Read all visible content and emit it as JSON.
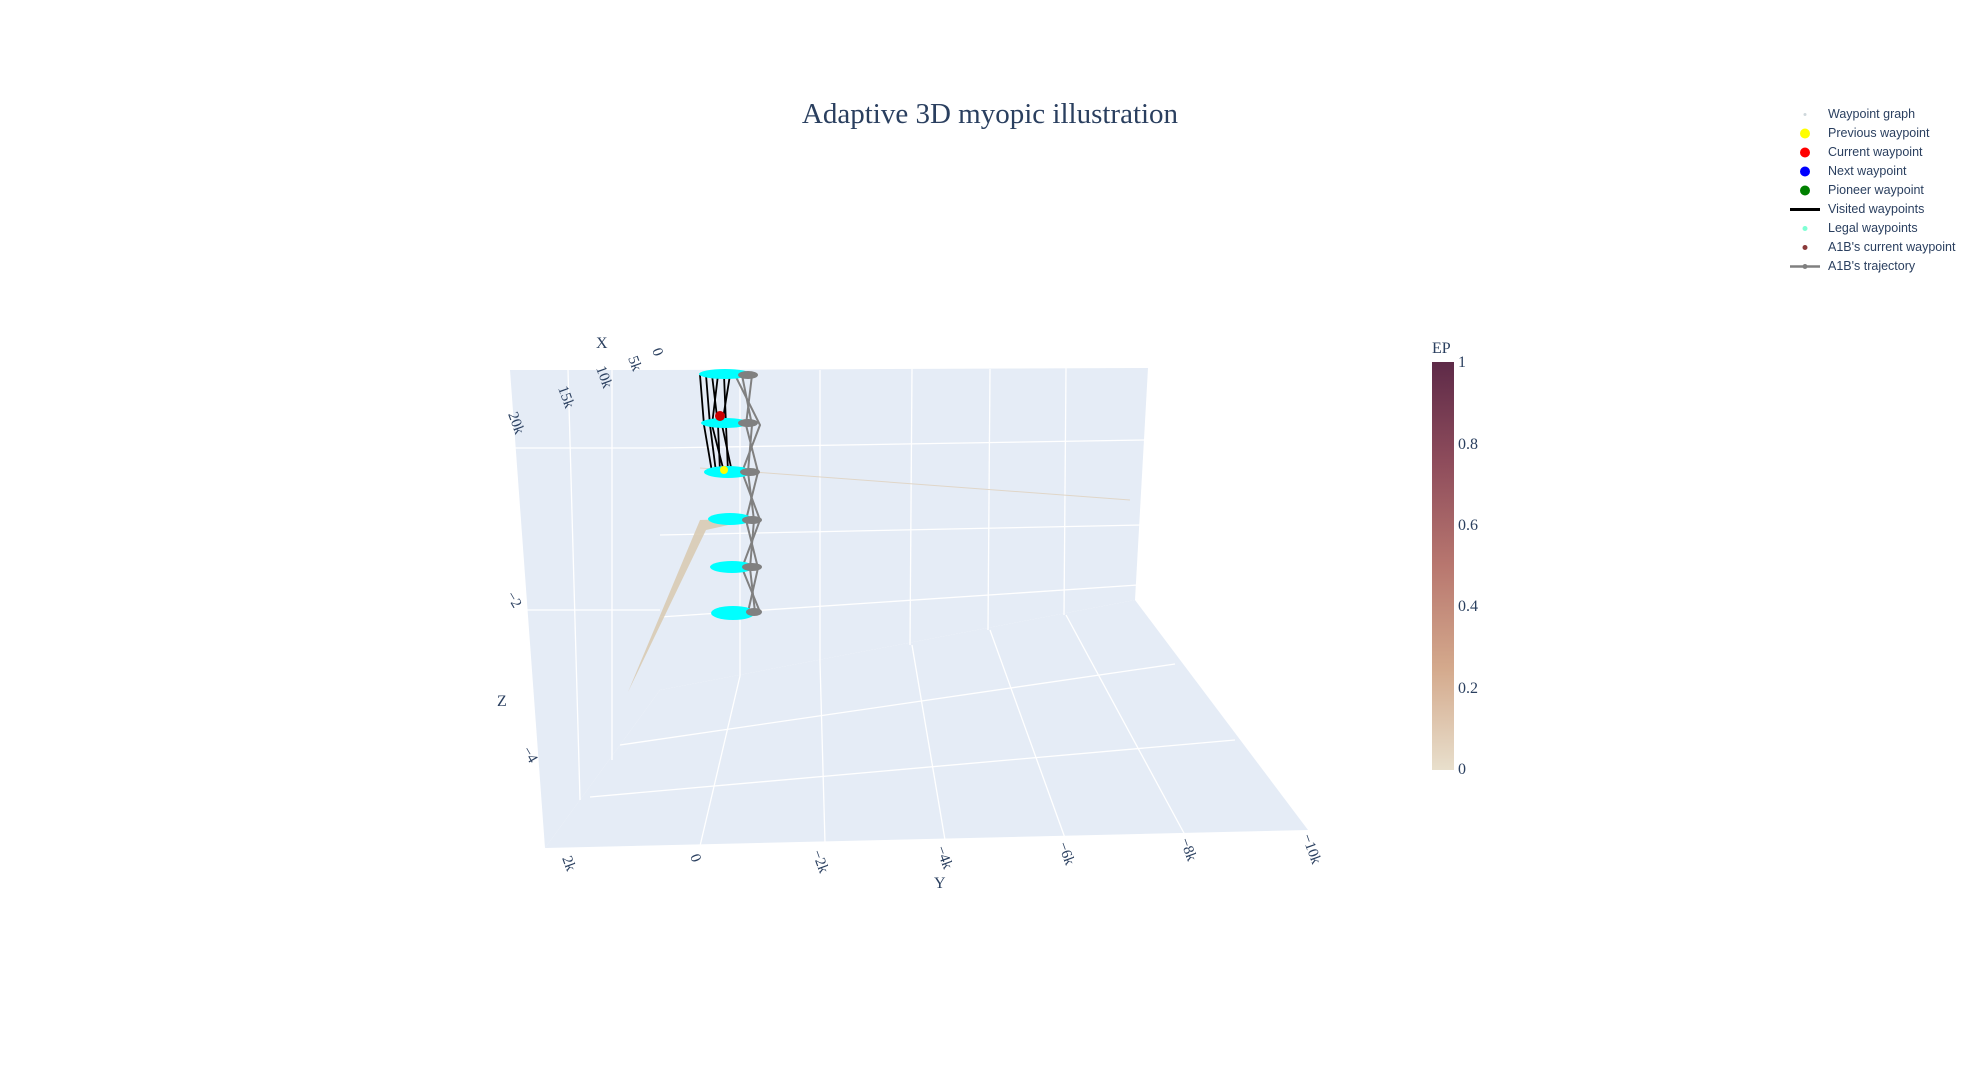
{
  "title": "Adaptive 3D myopic illustration",
  "legend": [
    {
      "name": "Waypoint graph",
      "symbol": "dot-faint",
      "color": "#cfd8dc"
    },
    {
      "name": "Previous waypoint",
      "symbol": "dot",
      "color": "#ffff00"
    },
    {
      "name": "Current waypoint",
      "symbol": "dot",
      "color": "#ff0000"
    },
    {
      "name": "Next waypoint",
      "symbol": "dot",
      "color": "#0000ff"
    },
    {
      "name": "Pioneer waypoint",
      "symbol": "dot",
      "color": "#008000"
    },
    {
      "name": "Visited waypoints",
      "symbol": "line",
      "color": "#000000"
    },
    {
      "name": "Legal waypoints",
      "symbol": "dot-small",
      "color": "#7fffd4"
    },
    {
      "name": "A1B's current waypoint",
      "symbol": "dot-small",
      "color": "#8b3a3a"
    },
    {
      "name": "A1B's trajectory",
      "symbol": "line-marker",
      "color": "#808080"
    }
  ],
  "chart_data": {
    "type": "scatter3d",
    "title": "Adaptive 3D myopic illustration",
    "axes": {
      "x": {
        "label": "X",
        "ticks": [
          "0",
          "5k",
          "10k",
          "15k",
          "20k"
        ]
      },
      "y": {
        "label": "Y",
        "ticks": [
          "2k",
          "0",
          "−2k",
          "−4k",
          "−6k",
          "−8k",
          "−10k"
        ]
      },
      "z": {
        "label": "Z",
        "ticks": [
          "−2",
          "−4"
        ]
      }
    },
    "colorbar": {
      "title": "EP",
      "ticks": [
        "1",
        "0.8",
        "0.6",
        "0.4",
        "0.2",
        "0"
      ],
      "colors": [
        "#e8dfcc",
        "#d4a98c",
        "#b8776f",
        "#8f4d5c",
        "#5e2a48"
      ]
    },
    "series": [
      {
        "name": "Legal waypoints",
        "color": "#00ffff"
      },
      {
        "name": "Visited waypoints",
        "color": "#000000"
      },
      {
        "name": "A1B's trajectory",
        "color": "#808080"
      },
      {
        "name": "Previous waypoint",
        "color": "#ffff00"
      },
      {
        "name": "Current waypoint",
        "color": "#ff0000"
      }
    ]
  }
}
